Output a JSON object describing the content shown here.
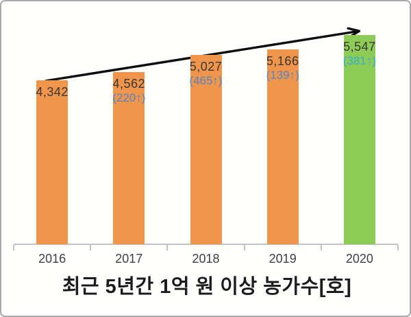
{
  "chart_data": {
    "type": "bar",
    "title": "최근 5년간 1억 원 이상 농가수[호]",
    "xlabel": "",
    "ylabel": "",
    "ylim": [
      0,
      6500
    ],
    "grid": false,
    "legend": "none",
    "categories": [
      "2016",
      "2017",
      "2018",
      "2019",
      "2020"
    ],
    "values": [
      4342,
      4562,
      5027,
      5166,
      5547
    ],
    "value_labels": [
      "4,342",
      "4,562",
      "5,027",
      "5,166",
      "5,547"
    ],
    "delta_labels": [
      "",
      "(220↑)",
      "(465↑)",
      "(139↑)",
      "(381↑)"
    ],
    "bar_colors": [
      "#F0954C",
      "#F0954C",
      "#F0954C",
      "#F0954C",
      "#8CCB55"
    ],
    "delta_colors": [
      "",
      "#5585C4",
      "#5585C4",
      "#5585C4",
      "#35AED3"
    ],
    "value_label_color": "#3A3734",
    "tick_label_color": "#3F3F3F",
    "axis_color": "#C3C3C3",
    "annotations": [
      {
        "name": "trend-arrow",
        "style": "straight-open-head",
        "color": "#0d0d0d",
        "from_category": "2016",
        "to_category": "2020"
      }
    ]
  }
}
